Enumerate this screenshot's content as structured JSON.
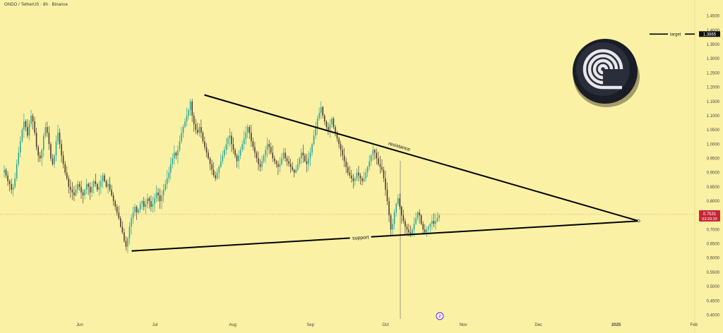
{
  "header": {
    "symbol_title": "ONDO / TetherUS · 8h · Binance"
  },
  "price_tag": {
    "value": "0.7531",
    "countdown": "03:29:33"
  },
  "target": {
    "label": "target",
    "value": "1.3865"
  },
  "annotations": {
    "resistance": "resistance",
    "support": "support"
  },
  "colors": {
    "background": "#fbf1a4",
    "up": "#26a69a",
    "down": "#4a3a30",
    "trendline": "#000000",
    "price_tag": "#c8243a"
  },
  "icons": {
    "logo": "ondo-logo-icon",
    "event": "event-marker-icon"
  },
  "chart_data": {
    "type": "candlestick",
    "title": "ONDO / TetherUS · 8h · Binance",
    "y_ticks": [
      "1.4500",
      "1.4000",
      "1.3500",
      "1.3000",
      "1.2500",
      "1.2000",
      "1.1500",
      "1.1000",
      "1.0500",
      "1.0000",
      "0.9500",
      "0.9000",
      "0.8500",
      "0.8000",
      "0.7500",
      "0.7000",
      "0.6500",
      "0.6000",
      "0.5500",
      "0.5000",
      "0.4500",
      "0.4000"
    ],
    "ylim": [
      0.39,
      1.47
    ],
    "x_ticks": [
      {
        "label": "Jun",
        "day": 0
      },
      {
        "label": "Jul",
        "day": 30
      },
      {
        "label": "Aug",
        "day": 61
      },
      {
        "label": "Sep",
        "day": 92
      },
      {
        "label": "Oct",
        "day": 122
      },
      {
        "label": "Nov",
        "day": 153
      },
      {
        "label": "Dec",
        "day": 183
      },
      {
        "label": "2025",
        "day": 214
      },
      {
        "label": "Feb",
        "day": 245
      }
    ],
    "xlim_days": [
      -29,
      254
    ],
    "last_price": 0.7531,
    "target_price": 1.3865,
    "trendlines": [
      {
        "name": "resistance",
        "from": {
          "day": 50,
          "price": 1.172
        },
        "to": {
          "day": 223,
          "price": 0.73
        }
      },
      {
        "name": "support",
        "from": {
          "day": 21,
          "price": 0.625
        },
        "to": {
          "day": 223,
          "price": 0.73
        }
      }
    ],
    "closes": [
      0.91,
      0.89,
      0.87,
      0.86,
      0.84,
      0.85,
      0.88,
      0.93,
      0.97,
      1.01,
      1.05,
      1.08,
      1.06,
      1.03,
      1.07,
      1.1,
      1.08,
      1.04,
      0.99,
      0.96,
      0.95,
      0.98,
      1.03,
      1.06,
      1.04,
      1.0,
      0.95,
      0.93,
      0.96,
      1.01,
      1.04,
      1.0,
      0.96,
      0.93,
      0.9,
      0.88,
      0.85,
      0.84,
      0.83,
      0.82,
      0.84,
      0.86,
      0.85,
      0.83,
      0.82,
      0.84,
      0.86,
      0.85,
      0.83,
      0.85,
      0.87,
      0.86,
      0.84,
      0.85,
      0.87,
      0.89,
      0.87,
      0.85,
      0.86,
      0.84,
      0.82,
      0.8,
      0.78,
      0.76,
      0.74,
      0.71,
      0.69,
      0.66,
      0.64,
      0.67,
      0.71,
      0.74,
      0.76,
      0.78,
      0.76,
      0.77,
      0.79,
      0.8,
      0.78,
      0.79,
      0.81,
      0.8,
      0.78,
      0.79,
      0.81,
      0.83,
      0.82,
      0.8,
      0.82,
      0.84,
      0.86,
      0.88,
      0.9,
      0.93,
      0.95,
      0.97,
      0.96,
      0.98,
      1.01,
      1.04,
      1.06,
      1.08,
      1.1,
      1.12,
      1.15,
      1.1,
      1.07,
      1.05,
      1.04,
      1.06,
      1.04,
      1.01,
      0.99,
      0.97,
      0.95,
      0.93,
      0.91,
      0.89,
      0.88,
      0.9,
      0.92,
      0.94,
      0.96,
      0.98,
      1.0,
      1.02,
      1.03,
      1.0,
      0.98,
      0.96,
      0.94,
      0.96,
      0.98,
      1.0,
      1.02,
      1.04,
      1.06,
      1.04,
      1.01,
      0.99,
      0.97,
      0.95,
      0.93,
      0.92,
      0.94,
      0.96,
      0.98,
      1.0,
      0.99,
      0.97,
      0.95,
      0.94,
      0.93,
      0.92,
      0.93,
      0.95,
      0.97,
      0.95,
      0.94,
      0.93,
      0.92,
      0.91,
      0.9,
      0.91,
      0.93,
      0.95,
      0.97,
      0.96,
      0.94,
      0.93,
      0.95,
      0.97,
      1.0,
      1.03,
      1.06,
      1.09,
      1.11,
      1.13,
      1.1,
      1.08,
      1.06,
      1.05,
      1.07,
      1.09,
      1.06,
      1.04,
      1.02,
      1.0,
      0.98,
      0.96,
      0.94,
      0.92,
      0.9,
      0.89,
      0.88,
      0.87,
      0.88,
      0.9,
      0.89,
      0.88,
      0.87,
      0.88,
      0.9,
      0.92,
      0.94,
      0.96,
      0.98,
      0.97,
      0.95,
      0.93,
      0.92,
      0.91,
      0.88,
      0.84,
      0.8,
      0.75,
      0.7,
      0.72,
      0.76,
      0.79,
      0.81,
      0.78,
      0.75,
      0.73,
      0.71,
      0.7,
      0.69,
      0.68,
      0.7,
      0.72,
      0.74,
      0.76,
      0.75,
      0.72,
      0.7,
      0.69,
      0.7,
      0.71,
      0.72,
      0.73,
      0.72,
      0.73,
      0.74,
      0.75
    ]
  }
}
